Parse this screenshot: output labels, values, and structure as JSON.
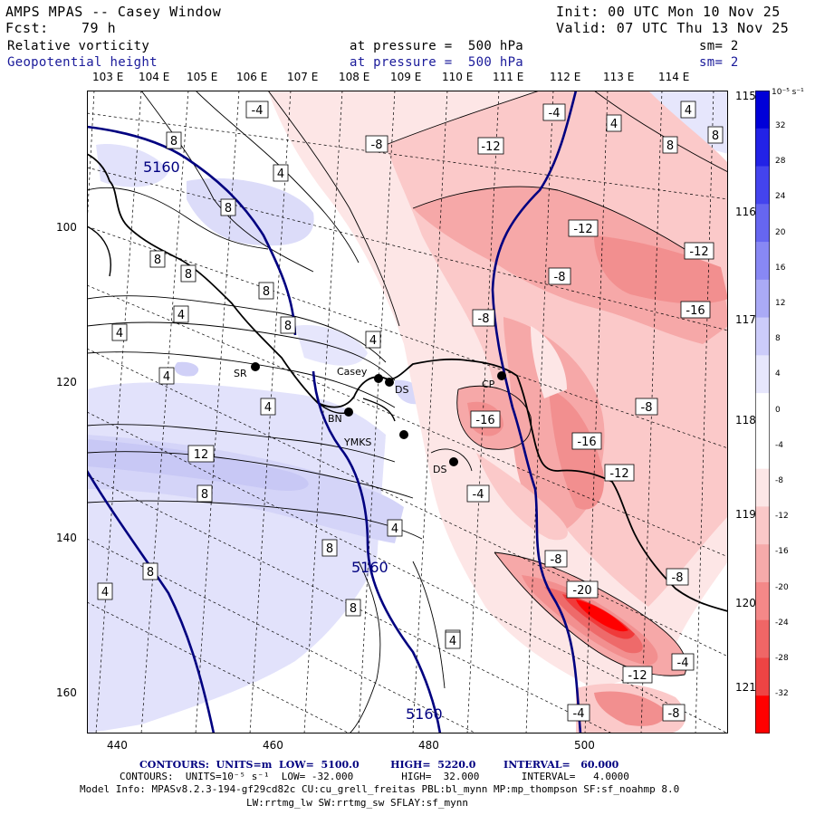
{
  "header": {
    "model": "AMPS MPAS -- Casey Window",
    "init": "Init: 00 UTC Mon 10 Nov 25",
    "fcst_label": "Fcst:",
    "fcst_value": "79 h",
    "valid": "Valid: 07 UTC Thu 13 Nov 25"
  },
  "fields": [
    {
      "name": "Relative vorticity",
      "level": "at pressure =  500 hPa",
      "sm": "sm= 2"
    },
    {
      "name": "Geopotential height",
      "level": "at pressure =  500 hPa",
      "sm": "sm= 2"
    }
  ],
  "lon_top": [
    "103 E",
    "104 E",
    "105 E",
    "106 E",
    "107 E",
    "108 E",
    "109 E",
    "110 E",
    "111 E",
    "112 E",
    "113 E",
    "114 E"
  ],
  "lon_right": [
    "115 E",
    "116 E",
    "117 E",
    "118 E",
    "119 E",
    "120 E",
    "121 E"
  ],
  "y_axis": [
    "100",
    "120",
    "140",
    "160"
  ],
  "x_axis": [
    "440",
    "460",
    "480",
    "500"
  ],
  "colorbar": {
    "unit": "10⁻⁵ s⁻¹",
    "ticks": [
      "32",
      "28",
      "24",
      "20",
      "16",
      "12",
      "8",
      "4",
      "0",
      "-4",
      "-8",
      "-12",
      "-16",
      "-20",
      "-24",
      "-28",
      "-32"
    ],
    "colors": [
      "#0000d8",
      "#2222e6",
      "#4444ee",
      "#6666f0",
      "#8888f4",
      "#aaaaf6",
      "#ccccfa",
      "#e6e6fc",
      "#ffffff",
      "#ffffff",
      "#fce6e6",
      "#fac8c8",
      "#f6aaaa",
      "#f48888",
      "#f06666",
      "#ee4444",
      "#ff0000"
    ]
  },
  "heights": [
    {
      "text": "5160",
      "color": "#000080"
    },
    {
      "text": "5160",
      "color": "#000080"
    },
    {
      "text": "5160",
      "color": "#000080"
    }
  ],
  "contour_labels": [
    "-4",
    "-8",
    "-4",
    "4",
    "8",
    "8",
    "4",
    "8",
    "8",
    "8",
    "4",
    "4",
    "8",
    "8",
    "4",
    "4",
    "4",
    "12",
    "8",
    "8",
    "4",
    "8",
    "8",
    "4",
    "4",
    "4",
    "8",
    "-8",
    "-12",
    "-12",
    "-8",
    "-8",
    "-12",
    "-16",
    "-8",
    "-16",
    "-12",
    "-16",
    "-4",
    "-8",
    "-20",
    "-8",
    "-12",
    "-4",
    "-8",
    "-4",
    "-8",
    "4",
    "-8",
    "-12",
    "4",
    "8"
  ],
  "stations": [
    "SR",
    "Casey",
    "DS",
    "CP",
    "BN",
    "YMKS",
    "DS"
  ],
  "footer": {
    "contours_height": "CONTOURS:  UNITS=m  LOW=  5100.0         HIGH=  5220.0        INTERVAL=   60.000",
    "contours_vort": "CONTOURS:  UNITS=10⁻⁵ s⁻¹  LOW= -32.000        HIGH=  32.000       INTERVAL=   4.0000",
    "model_info": "Model Info: MPASv8.2.3-194-gf29cd82c CU:cu_grell_freitas PBL:bl_mynn MP:mp_thompson SF:sf_noahmp 8.0",
    "model_info2": "LW:rrtmg_lw SW:rrtmg_sw SFLAY:sf_mynn"
  }
}
